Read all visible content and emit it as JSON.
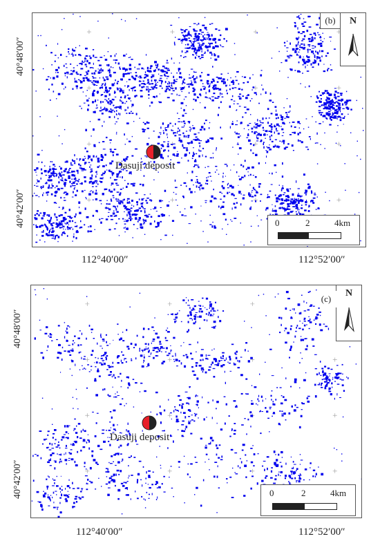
{
  "panels": [
    {
      "panel_label": "(b)",
      "lat_top": "40°48′00″",
      "lat_bottom": "40°42′00″",
      "lon_left": "112°40′00″",
      "lon_right": "112°52′00″",
      "north": "N",
      "deposit_label": "Dasuji deposit",
      "scale_labels": [
        "0",
        "2",
        "4km"
      ],
      "density": 1.0
    },
    {
      "panel_label": "(c)",
      "lat_top": "40°48′00″",
      "lat_bottom": "40°42′00″",
      "lon_left": "112°40′00″",
      "lon_right": "112°52′00″",
      "north": "N",
      "deposit_label": "Dasuji deposit",
      "scale_labels": [
        "0",
        "2",
        "4km"
      ],
      "density": 0.5
    }
  ],
  "colors": {
    "anomaly": "#0000ee",
    "deposit_left": "#e8202a",
    "deposit_right": "#222222",
    "frame": "#555555"
  }
}
